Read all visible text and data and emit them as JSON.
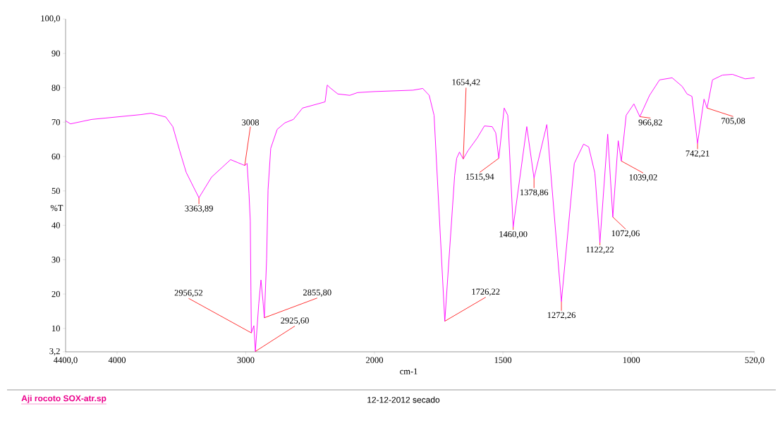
{
  "chart_data": [
    {
      "type": "line",
      "ylabel": "%T",
      "xlim": [
        4400,
        2000
      ],
      "ylim": [
        3.2,
        100
      ],
      "xticks": [
        {
          "value": 4400,
          "label": "4400,0"
        },
        4000,
        3000,
        2000
      ],
      "yticks": [
        {
          "value": 3.2,
          "label": "3,2"
        },
        10,
        20,
        30,
        40,
        50,
        60,
        70,
        80,
        90,
        {
          "value": 100,
          "label": "100,0"
        }
      ],
      "series": [
        {
          "color": "#ff00ff",
          "x": [
            4400,
            4362,
            4197,
            4088,
            3814,
            3737,
            3622,
            3567,
            3512,
            3463,
            3364,
            3266,
            3118,
            3060,
            3008,
            2990,
            2975,
            2965,
            2960,
            2956.52,
            2937,
            2925.6,
            2899,
            2882,
            2866,
            2855.8,
            2838,
            2827,
            2806,
            2756,
            2696,
            2630,
            2559,
            2384,
            2367,
            2345,
            2285,
            2192,
            2132,
            2000
          ],
          "values": [
            70.4,
            69.5,
            70.8,
            71.2,
            72.2,
            72.6,
            71.5,
            68.7,
            61.5,
            55.4,
            48.0,
            54.0,
            59.1,
            58.2,
            57.4,
            58.0,
            49.2,
            41.3,
            20.8,
            8.7,
            10.8,
            3.3,
            17.2,
            24.1,
            17.8,
            13.1,
            30.3,
            50.3,
            62.4,
            67.9,
            69.8,
            70.8,
            74.1,
            75.9,
            80.8,
            80.0,
            78.2,
            77.8,
            78.6,
            78.9
          ]
        }
      ],
      "annotations": [
        {
          "text": "3008",
          "x": 3008,
          "y": 57.4
        },
        {
          "text": "3363,89",
          "x": 3363.89,
          "y": 48.0
        },
        {
          "text": "2956,52",
          "x": 2956.52,
          "y": 8.7
        },
        {
          "text": "2925,60",
          "x": 2925.6,
          "y": 3.3
        },
        {
          "text": "2855,80",
          "x": 2855.8,
          "y": 13.1
        },
        "Aji rocoto SOX-atr.sp",
        "12-12-2012 secado"
      ]
    },
    {
      "type": "line",
      "xlabel": "cm-1",
      "tick_labels": "x",
      "xlim": [
        2000,
        520
      ],
      "ylim": [
        3.2,
        100
      ],
      "xticks": [
        1500,
        1000,
        {
          "value": 520,
          "label": "520,0"
        }
      ],
      "series": [
        {
          "color": "#ff00ff",
          "x": [
            2000,
            1850,
            1812,
            1787,
            1768,
            1726.22,
            1688,
            1680,
            1669,
            1654.42,
            1636,
            1600,
            1572,
            1542,
            1528,
            1515.94,
            1495,
            1481,
            1460,
            1407,
            1378.86,
            1329,
            1272.26,
            1222,
            1186,
            1166,
            1142,
            1122.22,
            1092,
            1072.06,
            1051,
            1039.02,
            1020,
            990,
            966.82,
            929,
            890,
            841,
            802,
            783,
            764,
            742.21,
            717,
            705.08,
            684,
            645,
            606,
            557,
            520
          ],
          "values": [
            78.9,
            79.3,
            79.8,
            77.8,
            72.0,
            12.1,
            54.4,
            59.5,
            61.3,
            59.3,
            61.7,
            65.4,
            68.9,
            68.7,
            66.9,
            59.5,
            74.1,
            72.0,
            39.5,
            68.7,
            53.7,
            69.3,
            17.8,
            58.0,
            63.6,
            62.8,
            55.2,
            35.0,
            66.5,
            42.4,
            64.6,
            58.7,
            72.0,
            75.3,
            71.6,
            77.8,
            82.3,
            82.9,
            80.4,
            78.2,
            77.5,
            63.8,
            76.7,
            74.1,
            82.3,
            83.7,
            83.9,
            82.6,
            82.9
          ]
        }
      ],
      "annotations": [
        {
          "text": "1654,42",
          "x": 1654.42,
          "y": 59.3
        },
        {
          "text": "1726,22",
          "x": 1726.22,
          "y": 12.1
        },
        {
          "text": "1515,94",
          "x": 1515.94,
          "y": 59.5
        },
        {
          "text": "1460,00",
          "x": 1460,
          "y": 39.5
        },
        {
          "text": "1378,86",
          "x": 1378.86,
          "y": 53.7
        },
        {
          "text": "1272,26",
          "x": 1272.26,
          "y": 17.8
        },
        {
          "text": "1122,22",
          "x": 1122.22,
          "y": 35.0
        },
        {
          "text": "1072,06",
          "x": 1072.06,
          "y": 42.4
        },
        {
          "text": "1039,02",
          "x": 1039.02,
          "y": 58.7
        },
        {
          "text": "966,82",
          "x": 966.82,
          "y": 71.6
        },
        {
          "text": "742,21",
          "x": 742.21,
          "y": 63.8
        },
        {
          "text": "705,08",
          "x": 705.08,
          "y": 74.1
        }
      ]
    }
  ]
}
